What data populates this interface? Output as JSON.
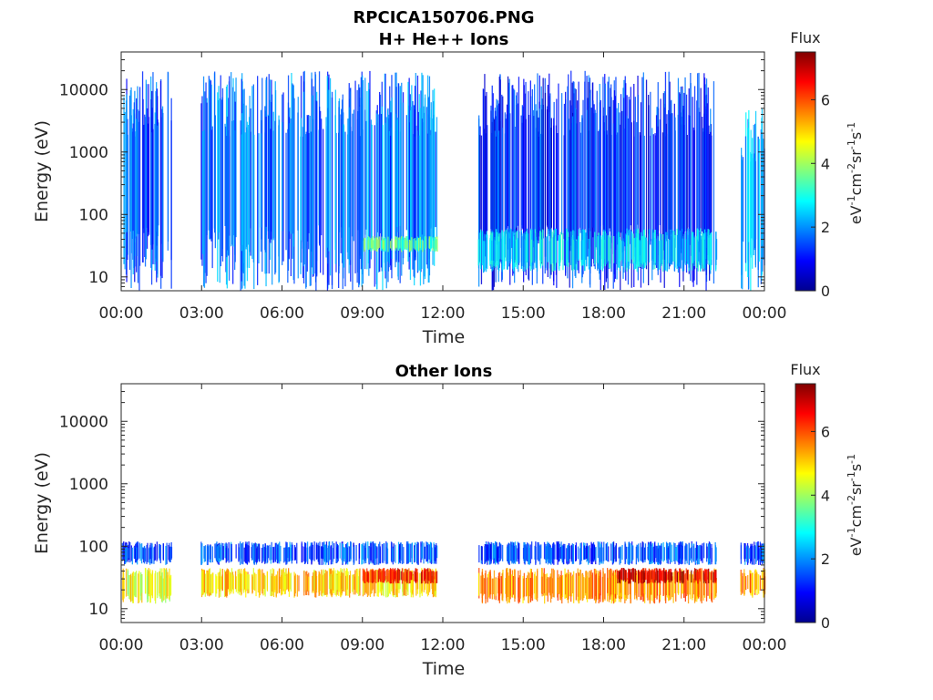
{
  "figure": {
    "title": "RPCICA150706.PNG"
  },
  "chart_data": [
    {
      "type": "heatmap",
      "title": "H+ He++ Ions",
      "xlabel": "Time",
      "ylabel": "Energy (eV)",
      "x_ticks": [
        "00:00",
        "03:00",
        "06:00",
        "09:00",
        "12:00",
        "15:00",
        "18:00",
        "21:00",
        "00:00"
      ],
      "x_range_hours": [
        0,
        24
      ],
      "y_scale": "log",
      "y_ticks": [
        "10",
        "100",
        "1000",
        "10000"
      ],
      "y_range": [
        6,
        40000
      ],
      "colorbar": {
        "label": "Flux",
        "units": "eV-1cm-2sr-1s-1",
        "ticks": [
          "0",
          "2",
          "4",
          "6"
        ],
        "range": [
          0,
          7.5
        ]
      },
      "data_gaps_hours": [
        [
          1.9,
          2.95
        ],
        [
          11.8,
          13.3
        ],
        [
          22.2,
          23.1
        ]
      ],
      "bands": [
        {
          "t_start": 0.0,
          "t_end": 1.9,
          "e_low": 6,
          "e_high": 20000,
          "typical_flux": 1.5
        },
        {
          "t_start": 2.95,
          "t_end": 11.8,
          "e_low": 6,
          "e_high": 20000,
          "typical_flux": 1.8
        },
        {
          "t_start": 9.0,
          "t_end": 11.8,
          "e_low": 25,
          "e_high": 45,
          "typical_flux": 3.5
        },
        {
          "t_start": 13.3,
          "t_end": 22.2,
          "e_low": 6,
          "e_high": 20000,
          "typical_flux": 1.2
        },
        {
          "t_start": 13.3,
          "t_end": 22.2,
          "e_low": 12,
          "e_high": 60,
          "typical_flux": 2.5
        },
        {
          "t_start": 23.1,
          "t_end": 24.0,
          "e_low": 6,
          "e_high": 5000,
          "typical_flux": 2.0
        }
      ]
    },
    {
      "type": "heatmap",
      "title": "Other Ions",
      "xlabel": "Time",
      "ylabel": "Energy (eV)",
      "x_ticks": [
        "00:00",
        "03:00",
        "06:00",
        "09:00",
        "12:00",
        "15:00",
        "18:00",
        "21:00",
        "00:00"
      ],
      "x_range_hours": [
        0,
        24
      ],
      "y_scale": "log",
      "y_ticks": [
        "10",
        "100",
        "1000",
        "10000"
      ],
      "y_range": [
        6,
        40000
      ],
      "colorbar": {
        "label": "Flux",
        "units": "eV-1cm-2sr-1s-1",
        "ticks": [
          "0",
          "2",
          "4",
          "6"
        ],
        "range": [
          0,
          7.5
        ]
      },
      "data_gaps_hours": [
        [
          1.9,
          2.95
        ],
        [
          11.8,
          13.3
        ],
        [
          22.2,
          23.1
        ]
      ],
      "bands": [
        {
          "t_start": 0.0,
          "t_end": 1.9,
          "e_low": 12,
          "e_high": 45,
          "typical_flux": 4.5
        },
        {
          "t_start": 2.95,
          "t_end": 11.8,
          "e_low": 15,
          "e_high": 45,
          "typical_flux": 5.0
        },
        {
          "t_start": 9.0,
          "t_end": 11.8,
          "e_low": 25,
          "e_high": 45,
          "typical_flux": 6.5
        },
        {
          "t_start": 13.3,
          "t_end": 22.2,
          "e_low": 12,
          "e_high": 45,
          "typical_flux": 5.5
        },
        {
          "t_start": 18.5,
          "t_end": 22.2,
          "e_low": 25,
          "e_high": 45,
          "typical_flux": 6.8
        },
        {
          "t_start": 0.0,
          "t_end": 24.0,
          "e_low": 50,
          "e_high": 120,
          "typical_flux": 1.5
        },
        {
          "t_start": 23.1,
          "t_end": 24.0,
          "e_low": 15,
          "e_high": 45,
          "typical_flux": 5.5
        }
      ]
    }
  ]
}
